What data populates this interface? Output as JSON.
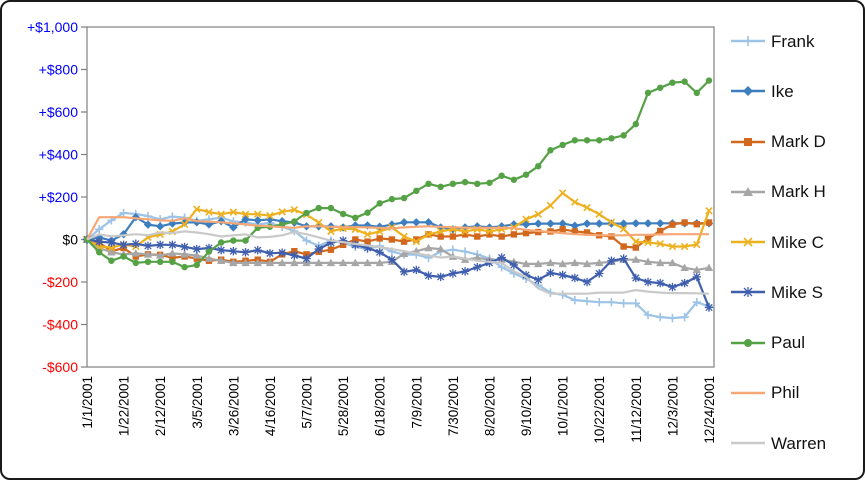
{
  "chart": {
    "background": "#FFFFFF",
    "frame_border_color": "#1A1A1A",
    "axis_color": "#808080",
    "x_label_color": "#000000"
  },
  "chart_data": {
    "type": "line",
    "title": "",
    "xlabel": "",
    "ylabel": "",
    "grid": false,
    "legend_position": "right",
    "ylim": [
      -600,
      1000
    ],
    "n_points": 52,
    "points_per_tick": 3,
    "x_tick_labels": [
      "1/1/2001",
      "1/22/2001",
      "2/12/2001",
      "3/5/2001",
      "3/26/2001",
      "4/16/2001",
      "5/7/2001",
      "5/28/2001",
      "6/18/2001",
      "7/9/2001",
      "7/30/2001",
      "8/20/2001",
      "9/10/2001",
      "10/1/2001",
      "10/22/2001",
      "11/12/2001",
      "12/3/2001",
      "12/24/2001"
    ],
    "y_ticks": [
      {
        "value": 1000,
        "label": "+$1,000",
        "color": "#0000FF"
      },
      {
        "value": 800,
        "label": "+$800",
        "color": "#0000FF"
      },
      {
        "value": 600,
        "label": "+$600",
        "color": "#0000FF"
      },
      {
        "value": 400,
        "label": "+$400",
        "color": "#0000FF"
      },
      {
        "value": 200,
        "label": "+$200",
        "color": "#0000FF"
      },
      {
        "value": 0,
        "label": "$0",
        "color": "#000000"
      },
      {
        "value": -200,
        "label": "-$200",
        "color": "#FF0000"
      },
      {
        "value": -400,
        "label": "-$400",
        "color": "#FF0000"
      },
      {
        "value": -600,
        "label": "-$600",
        "color": "#FF0000"
      }
    ],
    "series": [
      {
        "name": "Frank",
        "color": "#9DC3E6",
        "marker": "plus",
        "values": [
          0,
          48,
          90,
          125,
          120,
          110,
          95,
          108,
          103,
          88,
          95,
          103,
          85,
          80,
          70,
          78,
          60,
          40,
          -5,
          -30,
          -5,
          -15,
          -35,
          -45,
          -30,
          -57,
          -71,
          -71,
          -86,
          -57,
          -48,
          -57,
          -70,
          -90,
          -130,
          -160,
          -185,
          -215,
          -250,
          -260,
          -285,
          -290,
          -295,
          -295,
          -300,
          -300,
          -355,
          -365,
          -370,
          -365,
          -295,
          -315
        ]
      },
      {
        "name": "Ike",
        "color": "#3D7EBF",
        "marker": "diamond",
        "values": [
          0,
          10,
          -5,
          25,
          105,
          70,
          62,
          75,
          80,
          81,
          71,
          86,
          57,
          95,
          90,
          95,
          86,
          80,
          62,
          62,
          62,
          57,
          66,
          66,
          60,
          70,
          81,
          81,
          81,
          57,
          48,
          57,
          62,
          57,
          62,
          71,
          71,
          75,
          75,
          75,
          65,
          75,
          75,
          75,
          75,
          76,
          76,
          76,
          76,
          76,
          76,
          76
        ]
      },
      {
        "name": "Mark D",
        "color": "#D2681E",
        "marker": "square",
        "values": [
          0,
          -15,
          -55,
          -40,
          -80,
          -70,
          -72,
          -86,
          -80,
          -90,
          -100,
          -95,
          -105,
          -100,
          -95,
          -105,
          -70,
          -55,
          -70,
          -58,
          -48,
          -25,
          0,
          -10,
          5,
          0,
          -10,
          0,
          24,
          14,
          14,
          24,
          14,
          24,
          14,
          24,
          30,
          35,
          38,
          48,
          38,
          33,
          20,
          14,
          -33,
          -38,
          5,
          40,
          70,
          80,
          72,
          80
        ]
      },
      {
        "name": "Mark H",
        "color": "#A6A6A6",
        "marker": "triangle",
        "values": [
          0,
          -40,
          -60,
          -70,
          -65,
          -70,
          -75,
          -65,
          -70,
          -75,
          -90,
          -100,
          -110,
          -110,
          -110,
          -110,
          -110,
          -110,
          -110,
          -110,
          -110,
          -110,
          -110,
          -110,
          -110,
          -105,
          -67,
          -55,
          -40,
          -45,
          -81,
          -95,
          -86,
          -95,
          -95,
          -105,
          -115,
          -115,
          -110,
          -115,
          -110,
          -115,
          -110,
          -105,
          -95,
          -95,
          -105,
          -110,
          -110,
          -133,
          -143,
          -133
        ]
      },
      {
        "name": "Mike C",
        "color": "#EDB120",
        "marker": "x",
        "values": [
          0,
          -33,
          -38,
          -24,
          -33,
          10,
          24,
          38,
          71,
          143,
          129,
          119,
          129,
          119,
          119,
          112,
          130,
          140,
          117,
          80,
          38,
          52,
          48,
          24,
          38,
          57,
          14,
          -10,
          24,
          38,
          48,
          38,
          48,
          38,
          48,
          57,
          95,
          119,
          160,
          219,
          176,
          150,
          119,
          81,
          50,
          -10,
          -14,
          -20,
          -33,
          -33,
          -24,
          135
        ]
      },
      {
        "name": "Mike S",
        "color": "#3F5FAE",
        "marker": "asterisk",
        "values": [
          0,
          -10,
          -15,
          -25,
          -20,
          -30,
          -25,
          -25,
          -35,
          -45,
          -40,
          -50,
          -55,
          -60,
          -50,
          -65,
          -62,
          -75,
          -90,
          -45,
          -15,
          -5,
          -25,
          -40,
          -60,
          -95,
          -152,
          -143,
          -170,
          -176,
          -160,
          -150,
          -130,
          -110,
          -85,
          -120,
          -167,
          -190,
          -157,
          -167,
          -181,
          -200,
          -160,
          -100,
          -90,
          -181,
          -200,
          -205,
          -224,
          -205,
          -176,
          -320
        ]
      },
      {
        "name": "Paul",
        "color": "#55A146",
        "marker": "circle",
        "values": [
          0,
          -60,
          -100,
          -80,
          -110,
          -105,
          -105,
          -105,
          -130,
          -120,
          -57,
          -14,
          -5,
          -5,
          55,
          60,
          70,
          85,
          125,
          148,
          148,
          120,
          102,
          126,
          170,
          190,
          195,
          229,
          262,
          248,
          262,
          270,
          262,
          267,
          300,
          281,
          305,
          345,
          420,
          445,
          467,
          467,
          467,
          476,
          490,
          543,
          690,
          714,
          738,
          743,
          690,
          748
        ]
      },
      {
        "name": "Phil",
        "color": "#F5A876",
        "marker": "none",
        "values": [
          0,
          105,
          105,
          105,
          100,
          95,
          90,
          88,
          100,
          86,
          84,
          81,
          76,
          71,
          65,
          62,
          58,
          55,
          62,
          62,
          60,
          58,
          58,
          57,
          55,
          52,
          57,
          60,
          62,
          60,
          57,
          56,
          55,
          55,
          55,
          53,
          45,
          40,
          35,
          30,
          25,
          22,
          20,
          20,
          20,
          22,
          22,
          24,
          25,
          25,
          25,
          25
        ]
      },
      {
        "name": "Warren",
        "color": "#C9C9C9",
        "marker": "none",
        "values": [
          0,
          24,
          15,
          20,
          25,
          20,
          33,
          30,
          38,
          33,
          25,
          14,
          20,
          24,
          10,
          12,
          20,
          35,
          25,
          10,
          -5,
          -12,
          -21,
          -28,
          -36,
          -45,
          -55,
          -65,
          -75,
          -85,
          -80,
          -90,
          -100,
          -105,
          -110,
          -150,
          -176,
          -230,
          -255,
          -255,
          -255,
          -255,
          -250,
          -250,
          -250,
          -238,
          -245,
          -250,
          -252,
          -252,
          -253,
          -255
        ]
      }
    ]
  }
}
